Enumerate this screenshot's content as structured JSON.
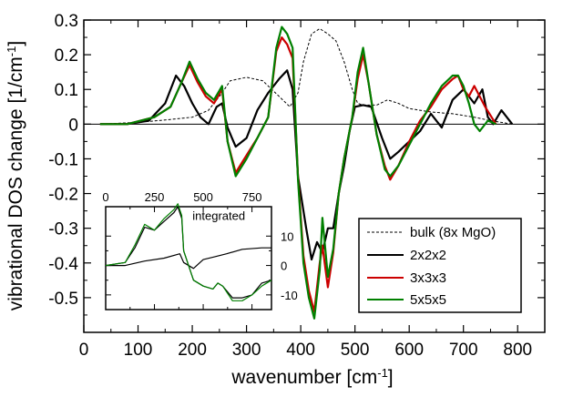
{
  "chart_data": [
    {
      "type": "line",
      "xlabel": "wavenumber [cm",
      "xlabel_sup": "-1",
      "xlabel_end": "]",
      "ylabel": "vibrational DOS change [1/cm",
      "ylabel_sup": "-1",
      "ylabel_end": "]",
      "xlim": [
        0,
        850
      ],
      "ylim": [
        -0.6,
        0.3
      ],
      "xticks": [
        0,
        100,
        200,
        300,
        400,
        500,
        600,
        700,
        800
      ],
      "yticks": [
        -0.5,
        -0.4,
        -0.3,
        -0.2,
        -0.1,
        0,
        0.1,
        0.2,
        0.3
      ],
      "ytick_labels": [
        "-0.5",
        "-0.4",
        "-0.3",
        "-0.2",
        "-0.1",
        "0",
        "0.1",
        "0.2",
        "0.3"
      ],
      "legend_position": "bottom-right",
      "series": [
        {
          "name": "bulk (8x MgO)",
          "color": "#000000",
          "style": "dashed",
          "points": [
            [
              30,
              0.0
            ],
            [
              100,
              0.005
            ],
            [
              150,
              0.012
            ],
            [
              200,
              0.02
            ],
            [
              230,
              0.04
            ],
            [
              255,
              0.09
            ],
            [
              270,
              0.125
            ],
            [
              300,
              0.135
            ],
            [
              330,
              0.125
            ],
            [
              360,
              0.08
            ],
            [
              380,
              0.05
            ],
            [
              395,
              0.09
            ],
            [
              405,
              0.18
            ],
            [
              420,
              0.26
            ],
            [
              435,
              0.275
            ],
            [
              450,
              0.26
            ],
            [
              465,
              0.24
            ],
            [
              480,
              0.18
            ],
            [
              495,
              0.1
            ],
            [
              505,
              0.06
            ],
            [
              515,
              0.055
            ],
            [
              540,
              0.055
            ],
            [
              560,
              0.07
            ],
            [
              580,
              0.06
            ],
            [
              600,
              0.045
            ],
            [
              640,
              0.035
            ],
            [
              680,
              0.03
            ],
            [
              720,
              0.02
            ],
            [
              750,
              0.01
            ],
            [
              790,
              0.0
            ]
          ]
        },
        {
          "name": "2x2x2",
          "color": "#000000",
          "style": "solid",
          "points": [
            [
              30,
              0.0
            ],
            [
              80,
              0.0
            ],
            [
              120,
              0.01
            ],
            [
              150,
              0.06
            ],
            [
              170,
              0.14
            ],
            [
              185,
              0.11
            ],
            [
              200,
              0.06
            ],
            [
              215,
              0.02
            ],
            [
              230,
              0.0
            ],
            [
              245,
              0.05
            ],
            [
              255,
              0.06
            ],
            [
              265,
              -0.01
            ],
            [
              280,
              -0.065
            ],
            [
              300,
              -0.04
            ],
            [
              320,
              0.04
            ],
            [
              340,
              0.09
            ],
            [
              360,
              0.13
            ],
            [
              375,
              0.155
            ],
            [
              385,
              0.1
            ],
            [
              395,
              -0.15
            ],
            [
              410,
              -0.3
            ],
            [
              420,
              -0.39
            ],
            [
              430,
              -0.34
            ],
            [
              440,
              -0.37
            ],
            [
              450,
              -0.3
            ],
            [
              460,
              -0.3
            ],
            [
              470,
              -0.2
            ],
            [
              480,
              -0.12
            ],
            [
              490,
              -0.02
            ],
            [
              500,
              0.05
            ],
            [
              515,
              0.055
            ],
            [
              530,
              0.05
            ],
            [
              550,
              -0.04
            ],
            [
              565,
              -0.1
            ],
            [
              580,
              -0.08
            ],
            [
              600,
              -0.05
            ],
            [
              620,
              -0.02
            ],
            [
              640,
              0.03
            ],
            [
              660,
              -0.01
            ],
            [
              680,
              0.07
            ],
            [
              700,
              0.1
            ],
            [
              720,
              0.06
            ],
            [
              735,
              0.1
            ],
            [
              745,
              0.02
            ],
            [
              755,
              0.0
            ],
            [
              770,
              0.04
            ],
            [
              790,
              0.0
            ]
          ]
        },
        {
          "name": "3x3x3",
          "color": "#cc0000",
          "style": "solid",
          "points": [
            [
              30,
              0.0
            ],
            [
              80,
              0.0
            ],
            [
              130,
              0.02
            ],
            [
              160,
              0.05
            ],
            [
              180,
              0.12
            ],
            [
              195,
              0.17
            ],
            [
              210,
              0.12
            ],
            [
              225,
              0.08
            ],
            [
              240,
              0.06
            ],
            [
              255,
              0.1
            ],
            [
              265,
              -0.05
            ],
            [
              280,
              -0.14
            ],
            [
              300,
              -0.09
            ],
            [
              320,
              -0.04
            ],
            [
              340,
              0.02
            ],
            [
              355,
              0.21
            ],
            [
              365,
              0.25
            ],
            [
              375,
              0.23
            ],
            [
              385,
              0.19
            ],
            [
              395,
              -0.15
            ],
            [
              405,
              -0.38
            ],
            [
              415,
              -0.48
            ],
            [
              425,
              -0.54
            ],
            [
              435,
              -0.4
            ],
            [
              440,
              -0.35
            ],
            [
              450,
              -0.47
            ],
            [
              460,
              -0.37
            ],
            [
              470,
              -0.2
            ],
            [
              480,
              -0.1
            ],
            [
              495,
              0.02
            ],
            [
              505,
              0.13
            ],
            [
              515,
              0.2
            ],
            [
              525,
              0.12
            ],
            [
              540,
              -0.03
            ],
            [
              555,
              -0.12
            ],
            [
              565,
              -0.16
            ],
            [
              580,
              -0.12
            ],
            [
              600,
              -0.05
            ],
            [
              620,
              0.01
            ],
            [
              640,
              0.05
            ],
            [
              660,
              0.1
            ],
            [
              680,
              0.13
            ],
            [
              690,
              0.14
            ],
            [
              700,
              0.1
            ],
            [
              710,
              0.08
            ],
            [
              720,
              0.11
            ],
            [
              740,
              0.05
            ],
            [
              760,
              0.0
            ]
          ]
        },
        {
          "name": "5x5x5",
          "color": "#008000",
          "style": "solid",
          "points": [
            [
              30,
              0.0
            ],
            [
              80,
              0.0
            ],
            [
              130,
              0.02
            ],
            [
              160,
              0.05
            ],
            [
              180,
              0.12
            ],
            [
              195,
              0.18
            ],
            [
              210,
              0.13
            ],
            [
              225,
              0.09
            ],
            [
              240,
              0.07
            ],
            [
              255,
              0.11
            ],
            [
              265,
              -0.05
            ],
            [
              280,
              -0.15
            ],
            [
              300,
              -0.1
            ],
            [
              320,
              -0.04
            ],
            [
              340,
              0.02
            ],
            [
              355,
              0.22
            ],
            [
              365,
              0.28
            ],
            [
              375,
              0.26
            ],
            [
              385,
              0.22
            ],
            [
              395,
              -0.16
            ],
            [
              405,
              -0.4
            ],
            [
              415,
              -0.5
            ],
            [
              425,
              -0.56
            ],
            [
              435,
              -0.42
            ],
            [
              440,
              -0.27
            ],
            [
              450,
              -0.44
            ],
            [
              460,
              -0.36
            ],
            [
              470,
              -0.2
            ],
            [
              480,
              -0.1
            ],
            [
              495,
              0.02
            ],
            [
              505,
              0.15
            ],
            [
              515,
              0.22
            ],
            [
              525,
              0.12
            ],
            [
              540,
              -0.03
            ],
            [
              555,
              -0.13
            ],
            [
              565,
              -0.15
            ],
            [
              580,
              -0.12
            ],
            [
              600,
              -0.06
            ],
            [
              620,
              0.0
            ],
            [
              640,
              0.06
            ],
            [
              660,
              0.11
            ],
            [
              680,
              0.14
            ],
            [
              690,
              0.14
            ],
            [
              700,
              0.11
            ],
            [
              710,
              0.06
            ],
            [
              720,
              0.0
            ],
            [
              730,
              -0.02
            ],
            [
              745,
              0.01
            ],
            [
              760,
              0.0
            ]
          ]
        }
      ]
    },
    {
      "type": "line",
      "annotation": "integrated",
      "xlim": [
        0,
        850
      ],
      "ylim": [
        -15,
        20
      ],
      "xticks": [
        0,
        250,
        500,
        750
      ],
      "yticks": [
        10,
        0,
        -10
      ],
      "series": [
        {
          "color": "#000000",
          "style": "solid",
          "points": [
            [
              0,
              0
            ],
            [
              100,
              0
            ],
            [
              200,
              1.5
            ],
            [
              300,
              2.5
            ],
            [
              380,
              4
            ],
            [
              400,
              1
            ],
            [
              450,
              -1
            ],
            [
              500,
              2
            ],
            [
              560,
              3
            ],
            [
              620,
              4
            ],
            [
              700,
              5.5
            ],
            [
              800,
              6
            ],
            [
              850,
              6
            ]
          ]
        },
        {
          "color": "#000000",
          "style": "solid",
          "points": [
            [
              0,
              0
            ],
            [
              100,
              1
            ],
            [
              150,
              6
            ],
            [
              200,
              13
            ],
            [
              250,
              12
            ],
            [
              300,
              15
            ],
            [
              350,
              18
            ],
            [
              370,
              20
            ],
            [
              390,
              16
            ],
            [
              400,
              5
            ],
            [
              450,
              -5
            ],
            [
              500,
              -7
            ],
            [
              550,
              -8
            ],
            [
              575,
              -6
            ],
            [
              600,
              -7
            ],
            [
              650,
              -11
            ],
            [
              700,
              -11
            ],
            [
              750,
              -10
            ],
            [
              800,
              -6
            ],
            [
              850,
              -5
            ]
          ]
        },
        {
          "color": "#008000",
          "style": "solid",
          "points": [
            [
              0,
              0
            ],
            [
              100,
              1
            ],
            [
              150,
              7
            ],
            [
              200,
              14
            ],
            [
              250,
              12
            ],
            [
              300,
              16
            ],
            [
              350,
              19
            ],
            [
              370,
              21
            ],
            [
              390,
              17
            ],
            [
              400,
              5
            ],
            [
              450,
              -5
            ],
            [
              500,
              -7
            ],
            [
              550,
              -8
            ],
            [
              575,
              -6
            ],
            [
              600,
              -7
            ],
            [
              650,
              -12
            ],
            [
              700,
              -12
            ],
            [
              750,
              -10
            ],
            [
              800,
              -7
            ],
            [
              850,
              -5
            ]
          ]
        }
      ]
    }
  ]
}
